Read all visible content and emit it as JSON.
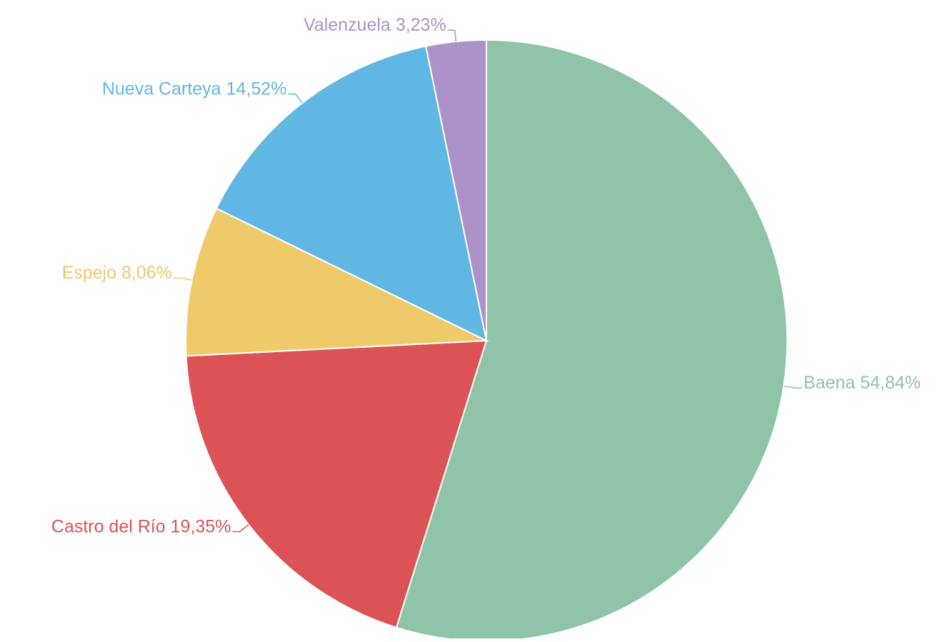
{
  "chart_data": {
    "type": "pie",
    "categories": [
      "Baena",
      "Castro del Río",
      "Espejo",
      "Nueva Carteya",
      "Valenzuela"
    ],
    "values": [
      54.84,
      19.35,
      8.06,
      14.52,
      3.23
    ],
    "value_labels": [
      "54,84%",
      "19,35%",
      "8,06%",
      "14,52%",
      "3,23%"
    ],
    "colors": [
      "#8fc4a8",
      "#dc5356",
      "#eeca6a",
      "#61b7e4",
      "#ad92c8"
    ]
  }
}
